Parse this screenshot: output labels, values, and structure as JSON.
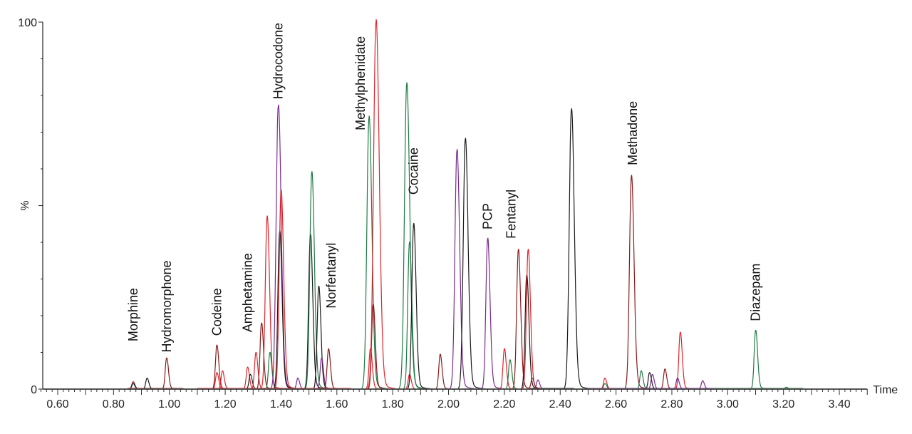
{
  "chart_data": {
    "type": "line",
    "title": "",
    "xlabel": "Time",
    "ylabel": "%",
    "xlim": [
      0.54,
      3.5
    ],
    "ylim": [
      0,
      100
    ],
    "grid": false,
    "legend": "none",
    "x_ticks": [
      "0.60",
      "0.80",
      "1.00",
      "1.20",
      "1.40",
      "1.60",
      "1.80",
      "2.00",
      "2.20",
      "2.40",
      "2.60",
      "2.80",
      "3.00",
      "3.20",
      "3.40"
    ],
    "y_ticks": [
      "0",
      "%",
      "100"
    ],
    "series_colors": {
      "black": "#1a1a1a",
      "red": "#e0242a",
      "darkred": "#8b1a1a",
      "green": "#1f7a45",
      "purple": "#7b2a8c"
    },
    "peaks": [
      {
        "rt": 0.87,
        "height": 2,
        "color": "darkred"
      },
      {
        "rt": 0.87,
        "height": 1.5,
        "color": "black"
      },
      {
        "rt": 0.92,
        "height": 3,
        "color": "black"
      },
      {
        "rt": 0.99,
        "height": 8.5,
        "color": "darkred"
      },
      {
        "rt": 1.17,
        "height": 12,
        "color": "darkred"
      },
      {
        "rt": 1.17,
        "height": 4.5,
        "color": "red"
      },
      {
        "rt": 1.19,
        "height": 5,
        "color": "red"
      },
      {
        "rt": 1.28,
        "height": 6,
        "color": "red"
      },
      {
        "rt": 1.29,
        "height": 4,
        "color": "black"
      },
      {
        "rt": 1.31,
        "height": 10,
        "color": "red"
      },
      {
        "rt": 1.33,
        "height": 18,
        "color": "darkred"
      },
      {
        "rt": 1.35,
        "height": 47,
        "color": "red"
      },
      {
        "rt": 1.36,
        "height": 10,
        "color": "green"
      },
      {
        "rt": 1.39,
        "height": 77,
        "color": "purple"
      },
      {
        "rt": 1.395,
        "height": 43,
        "color": "black"
      },
      {
        "rt": 1.4,
        "height": 54,
        "color": "red"
      },
      {
        "rt": 1.46,
        "height": 3,
        "color": "purple"
      },
      {
        "rt": 1.505,
        "height": 42,
        "color": "black"
      },
      {
        "rt": 1.51,
        "height": 59,
        "color": "green"
      },
      {
        "rt": 1.535,
        "height": 28,
        "color": "black"
      },
      {
        "rt": 1.545,
        "height": 8.5,
        "color": "purple"
      },
      {
        "rt": 1.57,
        "height": 11,
        "color": "darkred"
      },
      {
        "rt": 1.715,
        "height": 74,
        "color": "green"
      },
      {
        "rt": 1.72,
        "height": 11,
        "color": "red"
      },
      {
        "rt": 1.73,
        "height": 23,
        "color": "darkred"
      },
      {
        "rt": 1.74,
        "height": 100,
        "color": "red"
      },
      {
        "rt": 1.85,
        "height": 83,
        "color": "green"
      },
      {
        "rt": 1.86,
        "height": 40,
        "color": "green"
      },
      {
        "rt": 1.86,
        "height": 4,
        "color": "red"
      },
      {
        "rt": 1.875,
        "height": 45,
        "color": "black"
      },
      {
        "rt": 1.97,
        "height": 9.5,
        "color": "darkred"
      },
      {
        "rt": 2.03,
        "height": 65,
        "color": "purple"
      },
      {
        "rt": 2.06,
        "height": 68,
        "color": "black"
      },
      {
        "rt": 2.14,
        "height": 41,
        "color": "purple"
      },
      {
        "rt": 2.2,
        "height": 11,
        "color": "red"
      },
      {
        "rt": 2.22,
        "height": 8,
        "color": "green"
      },
      {
        "rt": 2.25,
        "height": 38,
        "color": "darkred"
      },
      {
        "rt": 2.28,
        "height": 31,
        "color": "black"
      },
      {
        "rt": 2.285,
        "height": 38,
        "color": "red"
      },
      {
        "rt": 2.3,
        "height": 3,
        "color": "darkred"
      },
      {
        "rt": 2.32,
        "height": 2.5,
        "color": "purple"
      },
      {
        "rt": 2.44,
        "height": 76,
        "color": "black"
      },
      {
        "rt": 2.56,
        "height": 3,
        "color": "red"
      },
      {
        "rt": 2.56,
        "height": 1.5,
        "color": "green"
      },
      {
        "rt": 2.655,
        "height": 58,
        "color": "darkred"
      },
      {
        "rt": 2.69,
        "height": 5,
        "color": "green"
      },
      {
        "rt": 2.72,
        "height": 4.5,
        "color": "black"
      },
      {
        "rt": 2.73,
        "height": 4,
        "color": "purple"
      },
      {
        "rt": 2.775,
        "height": 5.5,
        "color": "darkred"
      },
      {
        "rt": 2.82,
        "height": 3,
        "color": "purple"
      },
      {
        "rt": 2.83,
        "height": 15.5,
        "color": "red"
      },
      {
        "rt": 2.91,
        "height": 2.3,
        "color": "purple"
      },
      {
        "rt": 3.1,
        "height": 16,
        "color": "green"
      },
      {
        "rt": 3.21,
        "height": 0.5,
        "color": "green"
      }
    ],
    "annotations": [
      {
        "text": "Morphine",
        "rt": 0.87,
        "height": 13
      },
      {
        "text": "Hydromorphone",
        "rt": 0.99,
        "height": 10
      },
      {
        "text": "Codeine",
        "rt": 1.17,
        "height": 14.5
      },
      {
        "text": "Amphetamine",
        "rt": 1.28,
        "height": 15.5
      },
      {
        "text": "Hydrocodone",
        "rt": 1.39,
        "height": 79
      },
      {
        "text": "Norfentanyl",
        "rt": 1.58,
        "height": 22
      },
      {
        "text": "Methylphenidate",
        "rt": 1.685,
        "height": 70.5
      },
      {
        "text": "Cocaine",
        "rt": 1.875,
        "height": 53
      },
      {
        "text": "PCP",
        "rt": 2.14,
        "height": 43.5
      },
      {
        "text": "Fentanyl",
        "rt": 2.225,
        "height": 41
      },
      {
        "text": "Methadone",
        "rt": 2.66,
        "height": 61
      },
      {
        "text": "Diazepam",
        "rt": 3.1,
        "height": 18.5
      }
    ]
  }
}
